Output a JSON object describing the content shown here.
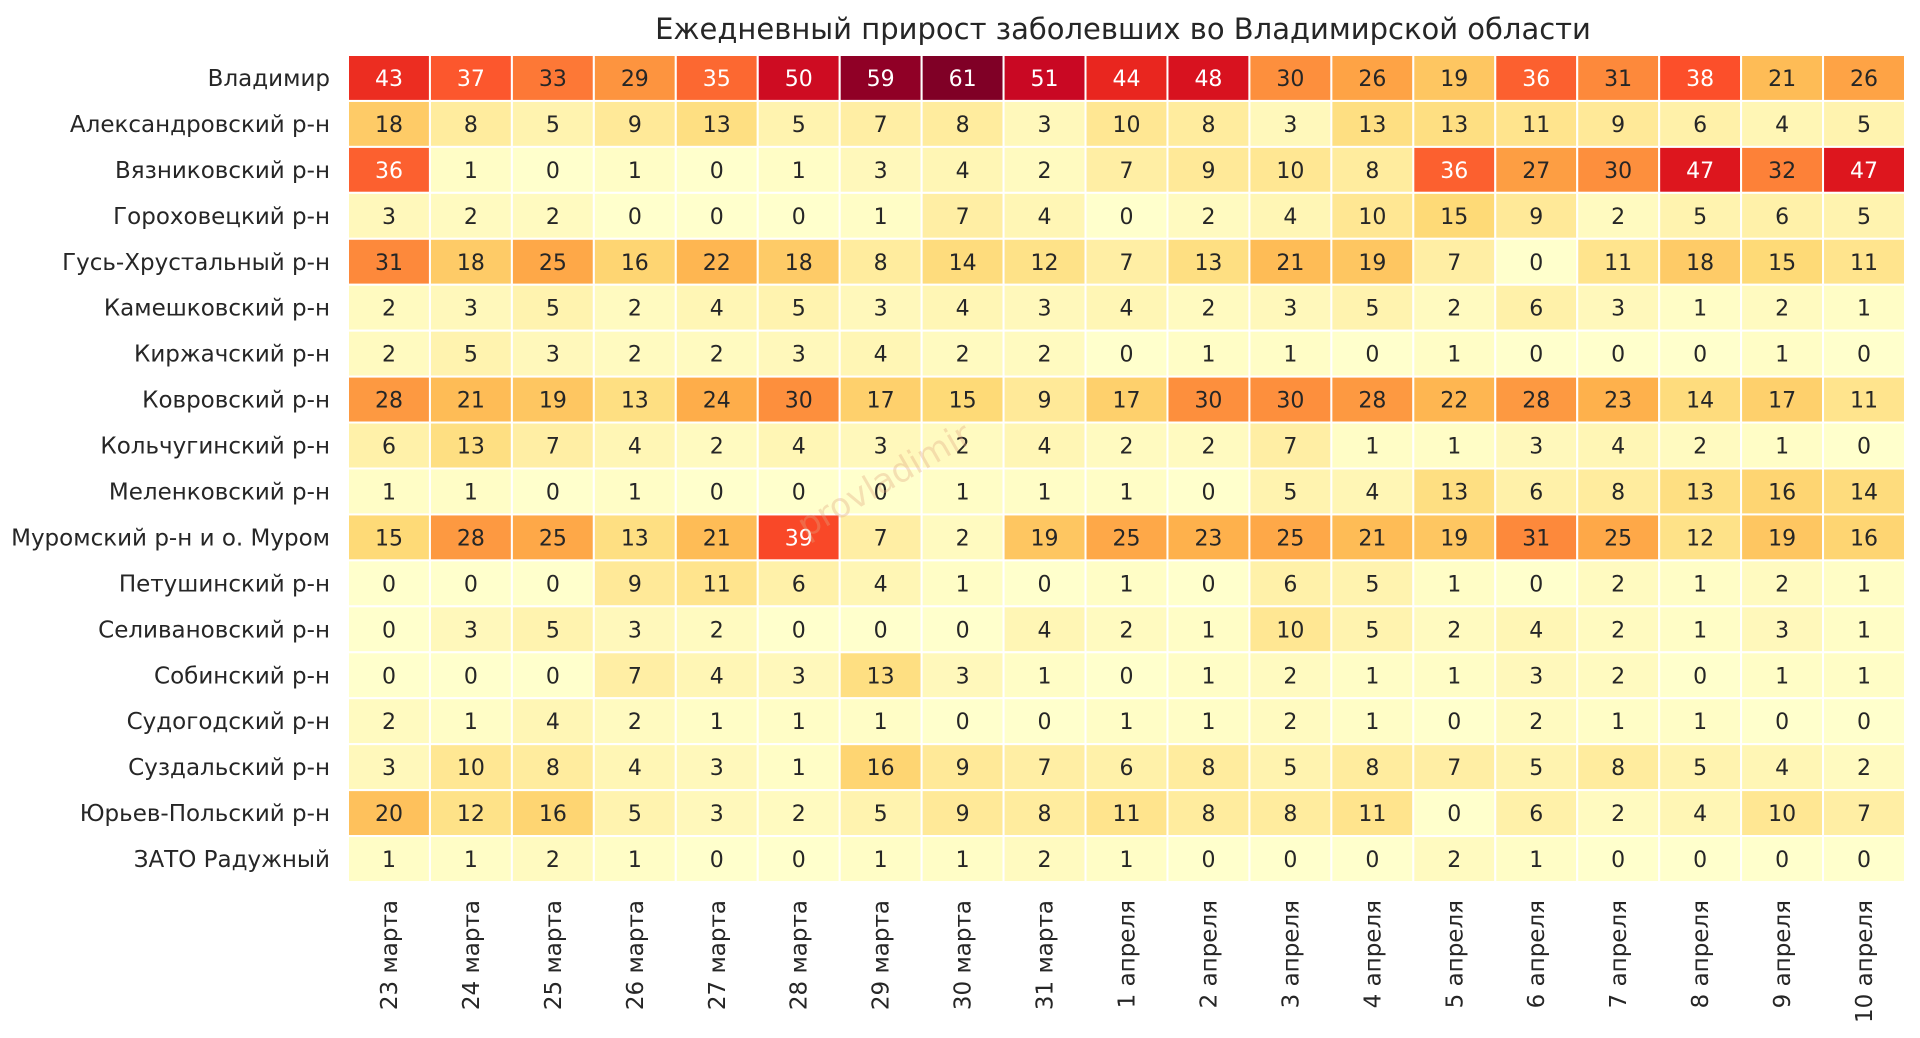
{
  "chart_data": {
    "type": "heatmap",
    "title": "Ежедневный прирост заболевших во Владимирской области",
    "watermark": "provladimir",
    "xlabel": "",
    "ylabel": "",
    "colormap": "YlOrRd",
    "vmin": 0,
    "vmax": 61,
    "columns": [
      "23 марта",
      "24 марта",
      "25 марта",
      "26 марта",
      "27 марта",
      "28 марта",
      "29 марта",
      "30 марта",
      "31 марта",
      "1 апреля",
      "2 апреля",
      "3 апреля",
      "4 апреля",
      "5 апреля",
      "6 апреля",
      "7 апреля",
      "8 апреля",
      "9 апреля",
      "10 апреля"
    ],
    "rows": [
      "Владимир",
      "Александровский р-н",
      "Вязниковский р-н",
      "Гороховецкий р-н",
      "Гусь-Хрустальный р-н",
      "Камешковский р-н",
      "Киржачский р-н",
      "Ковровский р-н",
      "Кольчугинский р-н",
      "Меленковский р-н",
      "Муромский р-н и о. Муром",
      "Петушинский р-н",
      "Селивановский р-н",
      "Собинский р-н",
      "Судогодский р-н",
      "Суздальский р-н",
      "Юрьев-Польский р-н",
      "ЗАТО Радужный"
    ],
    "values": [
      [
        43,
        37,
        33,
        29,
        35,
        50,
        59,
        61,
        51,
        44,
        48,
        30,
        26,
        19,
        36,
        31,
        38,
        21,
        26
      ],
      [
        18,
        8,
        5,
        9,
        13,
        5,
        7,
        8,
        3,
        10,
        8,
        3,
        13,
        13,
        11,
        9,
        6,
        4,
        5
      ],
      [
        36,
        1,
        0,
        1,
        0,
        1,
        3,
        4,
        2,
        7,
        9,
        10,
        8,
        36,
        27,
        30,
        47,
        32,
        47
      ],
      [
        3,
        2,
        2,
        0,
        0,
        0,
        1,
        7,
        4,
        0,
        2,
        4,
        10,
        15,
        9,
        2,
        5,
        6,
        5
      ],
      [
        31,
        18,
        25,
        16,
        22,
        18,
        8,
        14,
        12,
        7,
        13,
        21,
        19,
        7,
        0,
        11,
        18,
        15,
        11
      ],
      [
        2,
        3,
        5,
        2,
        4,
        5,
        3,
        4,
        3,
        4,
        2,
        3,
        5,
        2,
        6,
        3,
        1,
        2,
        1
      ],
      [
        2,
        5,
        3,
        2,
        2,
        3,
        4,
        2,
        2,
        0,
        1,
        1,
        0,
        1,
        0,
        0,
        0,
        1,
        0
      ],
      [
        28,
        21,
        19,
        13,
        24,
        30,
        17,
        15,
        9,
        17,
        30,
        30,
        28,
        22,
        28,
        23,
        14,
        17,
        11
      ],
      [
        6,
        13,
        7,
        4,
        2,
        4,
        3,
        2,
        4,
        2,
        2,
        7,
        1,
        1,
        3,
        4,
        2,
        1,
        0
      ],
      [
        1,
        1,
        0,
        1,
        0,
        0,
        0,
        1,
        1,
        1,
        0,
        5,
        4,
        13,
        6,
        8,
        13,
        16,
        14
      ],
      [
        15,
        28,
        25,
        13,
        21,
        39,
        7,
        2,
        19,
        25,
        23,
        25,
        21,
        19,
        31,
        25,
        12,
        19,
        16
      ],
      [
        0,
        0,
        0,
        9,
        11,
        6,
        4,
        1,
        0,
        1,
        0,
        6,
        5,
        1,
        0,
        2,
        1,
        2,
        1
      ],
      [
        0,
        3,
        5,
        3,
        2,
        0,
        0,
        0,
        4,
        2,
        1,
        10,
        5,
        2,
        4,
        2,
        1,
        3,
        1
      ],
      [
        0,
        0,
        0,
        7,
        4,
        3,
        13,
        3,
        1,
        0,
        1,
        2,
        1,
        1,
        3,
        2,
        0,
        1,
        1
      ],
      [
        2,
        1,
        4,
        2,
        1,
        1,
        1,
        0,
        0,
        1,
        1,
        2,
        1,
        0,
        2,
        1,
        1,
        0,
        0
      ],
      [
        3,
        10,
        8,
        4,
        3,
        1,
        16,
        9,
        7,
        6,
        8,
        5,
        8,
        7,
        5,
        8,
        5,
        4,
        2
      ],
      [
        20,
        12,
        16,
        5,
        3,
        2,
        5,
        9,
        8,
        11,
        8,
        8,
        11,
        0,
        6,
        2,
        4,
        10,
        7
      ],
      [
        1,
        1,
        2,
        1,
        0,
        0,
        1,
        1,
        2,
        1,
        0,
        0,
        0,
        2,
        1,
        0,
        0,
        0,
        0
      ]
    ]
  }
}
